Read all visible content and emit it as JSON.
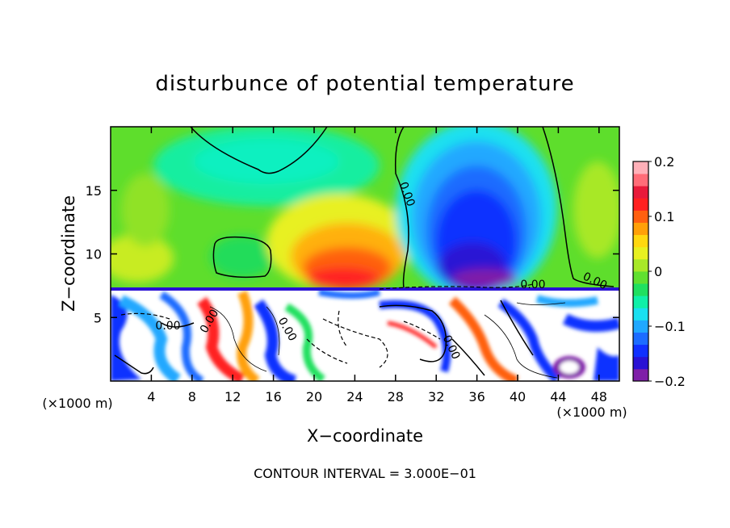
{
  "chart_data": {
    "type": "heatmap",
    "title": "disturbunce of potential temperature",
    "xlabel": "X−coordinate",
    "ylabel": "Z−coordinate",
    "x_unit_label_left": "(×1000 m)",
    "x_unit_label_right": "(×1000 m)",
    "xlim": [
      0,
      50
    ],
    "ylim": [
      0,
      20
    ],
    "x_ticks": [
      4,
      8,
      12,
      16,
      20,
      24,
      28,
      32,
      36,
      40,
      44,
      48
    ],
    "x_tick_labels": [
      "4",
      "8",
      "12",
      "16",
      "20",
      "24",
      "28",
      "32",
      "36",
      "40",
      "44",
      "48"
    ],
    "y_ticks": [
      5,
      10,
      15
    ],
    "y_tick_labels": [
      "5",
      "10",
      "15"
    ],
    "colorbar": {
      "range": [
        -0.2,
        0.2
      ],
      "tick_values": [
        0.2,
        0.1,
        0,
        -0.1,
        -0.2
      ],
      "tick_labels": [
        "0.2",
        "0.1",
        "0",
        "−0.1",
        "−0.2"
      ],
      "colors": [
        "#7f1fa8",
        "#2a12d4",
        "#1030ff",
        "#1c6cff",
        "#20a8ff",
        "#1ae0f0",
        "#10f0a8",
        "#20e060",
        "#60e030",
        "#a8e828",
        "#e8f020",
        "#ffd810",
        "#ffa008",
        "#ff6010",
        "#ff2020",
        "#e81a3a",
        "#ff6c78",
        "#ffb0b8"
      ]
    },
    "contour_labels": [
      "0.00",
      "0.00",
      "0.00",
      "0.00",
      "0.00",
      "0.00",
      "0.00"
    ],
    "footer": "CONTOUR INTERVAL = 3.000E−01"
  }
}
